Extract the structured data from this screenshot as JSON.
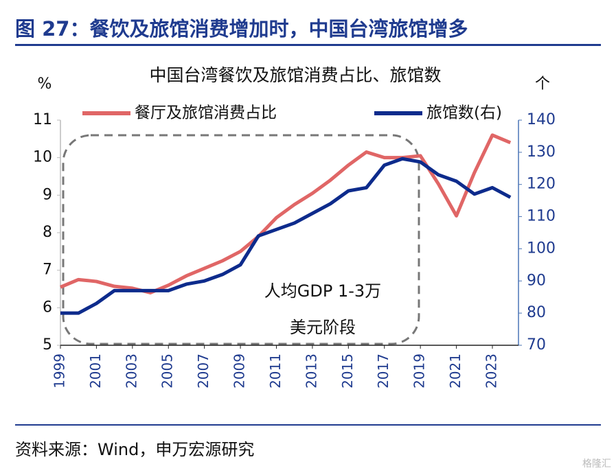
{
  "header": {
    "title": "图 27：餐饮及旅馆消费增加时，中国台湾旅馆增多"
  },
  "chart_data": {
    "type": "line",
    "title": "中国台湾餐饮及旅馆消费占比、旅馆数",
    "y_label": "%",
    "y2_label": "个",
    "x": [
      1999,
      2000,
      2001,
      2002,
      2003,
      2004,
      2005,
      2006,
      2007,
      2008,
      2009,
      2010,
      2011,
      2012,
      2013,
      2014,
      2015,
      2016,
      2017,
      2018,
      2019,
      2020,
      2021,
      2022,
      2023,
      2024
    ],
    "xlim": [
      1999,
      2024.45
    ],
    "xticks": [
      1999,
      2001,
      2003,
      2005,
      2007,
      2009,
      2011,
      2013,
      2015,
      2017,
      2019,
      2021,
      2023
    ],
    "ylim": [
      5,
      11
    ],
    "yticks": [
      5,
      6,
      7,
      8,
      9,
      10,
      11
    ],
    "y2lim": [
      70,
      140
    ],
    "y2ticks": [
      70,
      80,
      90,
      100,
      110,
      120,
      130,
      140
    ],
    "legend": "top",
    "series": [
      {
        "name": "餐厅及旅馆消费占比",
        "color": "#e06666",
        "axis": "y",
        "values": [
          6.55,
          6.75,
          6.7,
          6.57,
          6.52,
          6.4,
          6.6,
          6.85,
          7.05,
          7.25,
          7.5,
          7.9,
          8.4,
          8.75,
          9.05,
          9.4,
          9.8,
          10.15,
          10.0,
          10.0,
          10.05,
          9.3,
          8.45,
          9.6,
          10.6,
          10.4
        ]
      },
      {
        "name": "旅馆数(右)",
        "color": "#0d2b8c",
        "axis": "y2",
        "values": [
          80,
          80,
          83,
          87,
          87,
          87,
          87,
          89,
          90,
          92,
          95,
          104,
          106,
          108,
          111,
          114,
          118,
          119,
          126,
          128,
          127,
          123,
          121,
          117,
          119,
          116
        ]
      }
    ],
    "annotations": [
      "人均GDP 1-3万",
      "美元阶段"
    ]
  },
  "footer": {
    "source": "资料来源：Wind，申万宏源研究",
    "watermark": "格隆汇"
  }
}
